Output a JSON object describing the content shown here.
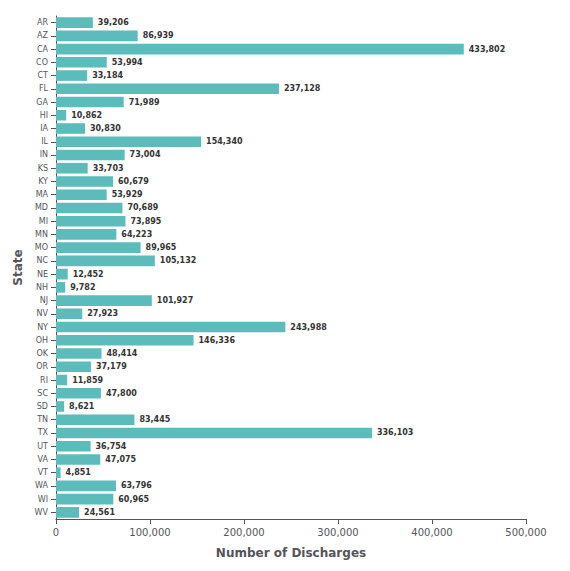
{
  "chart_data": {
    "type": "bar",
    "orientation": "horizontal",
    "categories": [
      "AR",
      "AZ",
      "CA",
      "CO",
      "CT",
      "FL",
      "GA",
      "HI",
      "IA",
      "IL",
      "IN",
      "KS",
      "KY",
      "MA",
      "MD",
      "MI",
      "MN",
      "MO",
      "NC",
      "NE",
      "NH",
      "NJ",
      "NV",
      "NY",
      "OH",
      "OK",
      "OR",
      "RI",
      "SC",
      "SD",
      "TN",
      "TX",
      "UT",
      "VA",
      "VT",
      "WA",
      "WI",
      "WV"
    ],
    "values": [
      39206,
      86939,
      433802,
      53994,
      33184,
      237128,
      71989,
      10862,
      30830,
      154340,
      73004,
      33703,
      60679,
      53929,
      70689,
      73895,
      64223,
      89965,
      105132,
      12452,
      9782,
      101927,
      27923,
      243988,
      146336,
      48414,
      37179,
      11859,
      47800,
      8621,
      83445,
      336103,
      36754,
      47075,
      4851,
      63796,
      60965,
      24561
    ],
    "value_labels": [
      "39,206",
      "86,939",
      "433,802",
      "53,994",
      "33,184",
      "237,128",
      "71,989",
      "10,862",
      "30,830",
      "154,340",
      "73,004",
      "33,703",
      "60,679",
      "53,929",
      "70,689",
      "73,895",
      "64,223",
      "89,965",
      "105,132",
      "12,452",
      "9,782",
      "101,927",
      "27,923",
      "243,988",
      "146,336",
      "48,414",
      "37,179",
      "11,859",
      "47,800",
      "8,621",
      "83,445",
      "336,103",
      "36,754",
      "47,075",
      "4,851",
      "63,796",
      "60,965",
      "24,561"
    ],
    "data_labels": true,
    "color": "#5bbcbb",
    "xlabel": "Number of Discharges",
    "ylabel": "State",
    "xlim": [
      0,
      500000
    ],
    "xticks": [
      0,
      {
        "value": 100000,
        "label": "100,000"
      },
      {
        "value": 200000,
        "label": "200,000"
      },
      {
        "value": 300000,
        "label": "300,000"
      },
      {
        "value": 400000,
        "label": "400,000"
      },
      {
        "value": 500000,
        "label": "500,000"
      }
    ],
    "grid": false
  }
}
